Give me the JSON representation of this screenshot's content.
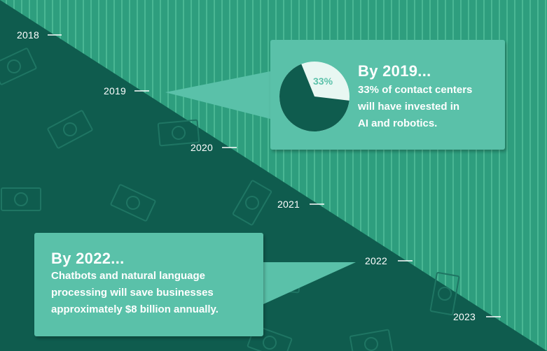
{
  "colors": {
    "light_teal": "#2e9e7e",
    "stripe": "#4ab794",
    "dark_teal": "#0f5c4e",
    "money_outline": "#1f7563",
    "callout": "#5ac1a9",
    "pie_dark": "#0f5c4e",
    "pie_light": "#e8f7f2"
  },
  "years": [
    "2018",
    "2019",
    "2020",
    "2021",
    "2022",
    "2023"
  ],
  "callout_2019": {
    "heading": "By 2019...",
    "line1": "33% of contact centers",
    "line2": "will have invested in",
    "line3": "AI and robotics.",
    "percent_label": "33%",
    "percent_value": 33
  },
  "callout_2022": {
    "heading": "By 2022...",
    "line1": "Chatbots and natural language",
    "line2": "processing will save businesses",
    "line3": "approximately $8 billion annually."
  }
}
